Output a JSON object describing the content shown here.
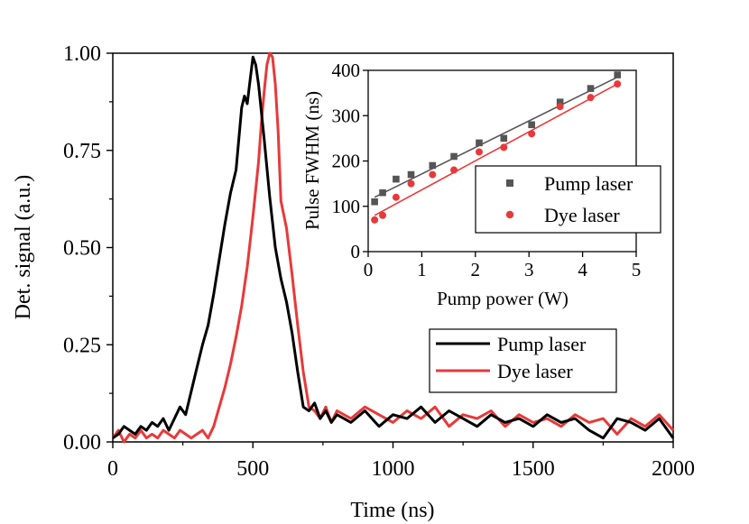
{
  "chart_data": [
    {
      "type": "line",
      "xlabel": "Time (ns)",
      "ylabel": "Det. signal (a.u.)",
      "xlim": [
        0,
        2000
      ],
      "ylim": [
        0,
        1.0
      ],
      "xticks": [
        0,
        500,
        1000,
        1500,
        2000
      ],
      "yticks": [
        0.0,
        0.25,
        0.5,
        0.75,
        1.0
      ],
      "xtick_labels": [
        "0",
        "500",
        "1000",
        "1500",
        "2000"
      ],
      "ytick_labels": [
        "0.00",
        "0.25",
        "0.50",
        "0.75",
        "1.00"
      ],
      "legend_position": "bottom-right",
      "grid": false,
      "series": [
        {
          "name": "Pump laser",
          "color": "#000000",
          "x": [
            0,
            20,
            40,
            60,
            80,
            100,
            120,
            140,
            160,
            180,
            200,
            220,
            240,
            260,
            280,
            300,
            320,
            340,
            360,
            380,
            400,
            420,
            440,
            460,
            470,
            480,
            490,
            500,
            510,
            520,
            530,
            540,
            560,
            580,
            600,
            620,
            640,
            660,
            680,
            700,
            720,
            740,
            760,
            780,
            800,
            850,
            900,
            950,
            1000,
            1050,
            1100,
            1150,
            1200,
            1250,
            1300,
            1350,
            1400,
            1450,
            1500,
            1550,
            1600,
            1650,
            1700,
            1750,
            1800,
            1850,
            1900,
            1950,
            2000
          ],
          "y": [
            0.01,
            0.02,
            0.04,
            0.03,
            0.02,
            0.04,
            0.03,
            0.05,
            0.04,
            0.06,
            0.03,
            0.06,
            0.09,
            0.07,
            0.13,
            0.19,
            0.25,
            0.3,
            0.38,
            0.47,
            0.56,
            0.64,
            0.7,
            0.86,
            0.89,
            0.87,
            0.93,
            0.99,
            0.97,
            0.92,
            0.85,
            0.78,
            0.63,
            0.5,
            0.42,
            0.36,
            0.28,
            0.18,
            0.09,
            0.08,
            0.1,
            0.06,
            0.08,
            0.05,
            0.07,
            0.05,
            0.08,
            0.04,
            0.07,
            0.06,
            0.09,
            0.05,
            0.08,
            0.06,
            0.04,
            0.07,
            0.05,
            0.06,
            0.04,
            0.07,
            0.05,
            0.06,
            0.03,
            0.01,
            0.06,
            0.05,
            0.03,
            0.06,
            0.01
          ]
        },
        {
          "name": "Dye laser",
          "color": "#e8393a",
          "x": [
            0,
            20,
            40,
            60,
            80,
            100,
            120,
            140,
            160,
            180,
            200,
            220,
            240,
            260,
            280,
            300,
            320,
            340,
            360,
            380,
            400,
            420,
            440,
            460,
            480,
            500,
            520,
            530,
            540,
            550,
            560,
            570,
            580,
            590,
            600,
            620,
            640,
            660,
            680,
            700,
            720,
            740,
            760,
            780,
            800,
            850,
            900,
            950,
            1000,
            1050,
            1100,
            1150,
            1200,
            1250,
            1300,
            1350,
            1400,
            1450,
            1500,
            1550,
            1600,
            1650,
            1700,
            1750,
            1800,
            1850,
            1900,
            1950,
            2000
          ],
          "y": [
            0.01,
            0.03,
            0.0,
            0.02,
            0.01,
            0.03,
            0.01,
            0.02,
            0.01,
            0.03,
            0.02,
            0.01,
            0.03,
            0.02,
            0.01,
            0.02,
            0.03,
            0.01,
            0.04,
            0.09,
            0.14,
            0.2,
            0.27,
            0.35,
            0.45,
            0.58,
            0.72,
            0.82,
            0.9,
            0.97,
            1.0,
            0.99,
            0.92,
            0.8,
            0.62,
            0.55,
            0.43,
            0.3,
            0.18,
            0.09,
            0.08,
            0.06,
            0.09,
            0.05,
            0.08,
            0.06,
            0.09,
            0.07,
            0.05,
            0.08,
            0.06,
            0.09,
            0.04,
            0.07,
            0.06,
            0.08,
            0.04,
            0.07,
            0.05,
            0.06,
            0.04,
            0.07,
            0.05,
            0.06,
            0.02,
            0.06,
            0.04,
            0.07,
            0.03
          ]
        }
      ]
    },
    {
      "type": "scatter",
      "xlabel": "Pump power (W)",
      "ylabel": "Pulse FWHM (ns)",
      "xlim": [
        0,
        5
      ],
      "ylim": [
        0,
        400
      ],
      "xticks": [
        0,
        1,
        2,
        3,
        4,
        5
      ],
      "yticks": [
        0,
        100,
        200,
        300,
        400
      ],
      "xtick_labels": [
        "0",
        "1",
        "2",
        "3",
        "4",
        "5"
      ],
      "ytick_labels": [
        "0",
        "100",
        "200",
        "300",
        "400"
      ],
      "legend_position": "right",
      "grid": false,
      "series": [
        {
          "name": "Pump laser",
          "color": "#555555",
          "marker": "square",
          "x": [
            0.12,
            0.27,
            0.52,
            0.8,
            1.2,
            1.6,
            2.07,
            2.53,
            3.05,
            3.58,
            4.15,
            4.65
          ],
          "y": [
            110,
            130,
            160,
            170,
            190,
            210,
            240,
            250,
            280,
            330,
            360,
            390
          ],
          "fit": [
            [
              0.12,
              120
            ],
            [
              4.65,
              385
            ]
          ]
        },
        {
          "name": "Dye laser",
          "color": "#e8393a",
          "marker": "circle",
          "x": [
            0.12,
            0.27,
            0.52,
            0.8,
            1.2,
            1.6,
            2.07,
            2.53,
            3.05,
            3.58,
            4.15,
            4.65
          ],
          "y": [
            70,
            80,
            120,
            150,
            170,
            180,
            220,
            230,
            260,
            320,
            340,
            370
          ],
          "fit": [
            [
              0.12,
              80
            ],
            [
              4.65,
              370
            ]
          ]
        }
      ]
    }
  ]
}
